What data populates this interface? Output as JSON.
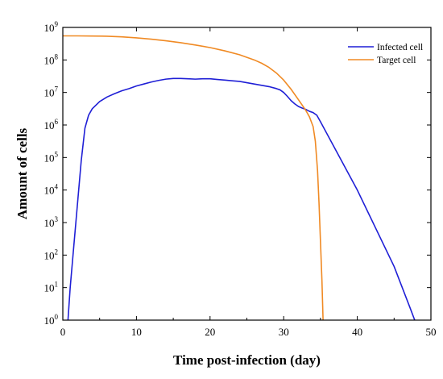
{
  "chart_data": {
    "type": "line",
    "xlabel": "Time post-infection (day)",
    "ylabel": "Amount of cells",
    "xlim": [
      0,
      50
    ],
    "ylim_log10": [
      0,
      9
    ],
    "yscale": "log",
    "grid": false,
    "legend_position": "top-right",
    "x_ticks": [
      0,
      10,
      20,
      30,
      40,
      50
    ],
    "y_tick_exponents": [
      0,
      1,
      2,
      3,
      4,
      5,
      6,
      7,
      8,
      9
    ],
    "series": [
      {
        "name": "Infected cell",
        "color": "#1f1fd6",
        "log10_points": [
          [
            0.7,
            0
          ],
          [
            1.0,
            1.0
          ],
          [
            1.5,
            2.3
          ],
          [
            2.0,
            3.6
          ],
          [
            2.5,
            4.9
          ],
          [
            3.0,
            5.9
          ],
          [
            3.5,
            6.3
          ],
          [
            4.0,
            6.5
          ],
          [
            5.0,
            6.72
          ],
          [
            6.0,
            6.86
          ],
          [
            7.0,
            6.96
          ],
          [
            8.0,
            7.05
          ],
          [
            9.0,
            7.12
          ],
          [
            10.0,
            7.2
          ],
          [
            11.0,
            7.26
          ],
          [
            12.0,
            7.32
          ],
          [
            13.0,
            7.37
          ],
          [
            14.0,
            7.41
          ],
          [
            15.0,
            7.43
          ],
          [
            16.0,
            7.43
          ],
          [
            17.0,
            7.42
          ],
          [
            18.0,
            7.41
          ],
          [
            19.0,
            7.42
          ],
          [
            20.0,
            7.42
          ],
          [
            21.0,
            7.4
          ],
          [
            22.0,
            7.38
          ],
          [
            23.0,
            7.36
          ],
          [
            24.0,
            7.34
          ],
          [
            25.0,
            7.3
          ],
          [
            26.0,
            7.26
          ],
          [
            27.0,
            7.22
          ],
          [
            28.0,
            7.18
          ],
          [
            29.0,
            7.12
          ],
          [
            29.5,
            7.08
          ],
          [
            30.0,
            7.0
          ],
          [
            30.5,
            6.88
          ],
          [
            31.0,
            6.75
          ],
          [
            31.5,
            6.65
          ],
          [
            32.0,
            6.57
          ],
          [
            32.5,
            6.52
          ],
          [
            33.0,
            6.48
          ],
          [
            33.5,
            6.42
          ],
          [
            34.0,
            6.38
          ],
          [
            34.5,
            6.3
          ],
          [
            35.0,
            6.1
          ],
          [
            40.0,
            4.0
          ],
          [
            45.0,
            1.65
          ],
          [
            47.3,
            0.3
          ],
          [
            47.8,
            0
          ]
        ]
      },
      {
        "name": "Target cell",
        "color": "#f08a24",
        "log10_points": [
          [
            0.0,
            8.74
          ],
          [
            2.0,
            8.74
          ],
          [
            4.0,
            8.735
          ],
          [
            6.0,
            8.73
          ],
          [
            8.0,
            8.71
          ],
          [
            10.0,
            8.68
          ],
          [
            12.0,
            8.64
          ],
          [
            14.0,
            8.59
          ],
          [
            16.0,
            8.53
          ],
          [
            18.0,
            8.46
          ],
          [
            20.0,
            8.38
          ],
          [
            22.0,
            8.28
          ],
          [
            24.0,
            8.16
          ],
          [
            26.0,
            8.0
          ],
          [
            27.0,
            7.9
          ],
          [
            28.0,
            7.77
          ],
          [
            29.0,
            7.6
          ],
          [
            30.0,
            7.38
          ],
          [
            31.0,
            7.1
          ],
          [
            32.0,
            6.78
          ],
          [
            33.0,
            6.45
          ],
          [
            33.5,
            6.25
          ],
          [
            34.0,
            5.95
          ],
          [
            34.3,
            5.5
          ],
          [
            34.6,
            4.6
          ],
          [
            34.8,
            3.6
          ],
          [
            35.0,
            2.4
          ],
          [
            35.2,
            1.2
          ],
          [
            35.35,
            0
          ]
        ]
      }
    ]
  }
}
